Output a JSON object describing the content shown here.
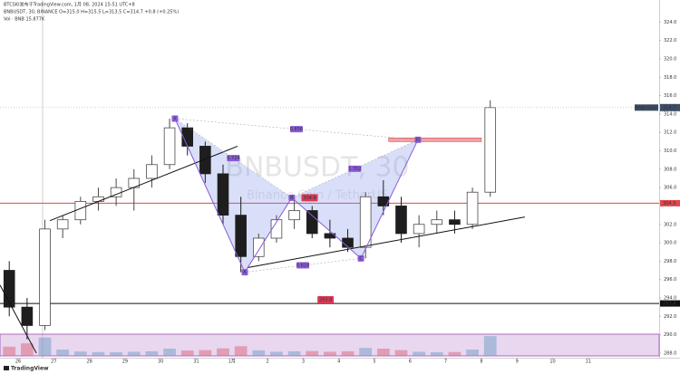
{
  "chart_data": {
    "type": "candlestick",
    "header": "BTCSKI发布于TradingView.com, 1月 08, 2024 15:51 UTC+8",
    "symbol_line": "BNBUSDT, 30, BINANCE  O=315.0 H=315.5 L=313.5 C=314.7 +0.8 (+0.25%)",
    "volume_line": "Vol · BNB  15.877K",
    "watermark": "BNBUSDT, 30",
    "watermark_sub": "Binance Coin / TetherUS",
    "symbol": "BNBUSDT",
    "brand": "TradingView",
    "x": [
      -0.25,
      0.25,
      0.75,
      1.25,
      1.75,
      2.25,
      2.75,
      3.25,
      3.75,
      4.25,
      4.75,
      5.25,
      5.75,
      6.25,
      6.75,
      7.25,
      7.75,
      8.25,
      8.75,
      9.25,
      9.75,
      10.25,
      10.75,
      11.25,
      11.75,
      12.25,
      12.75,
      13.25
    ],
    "open": [
      297,
      293,
      291,
      301.5,
      302.5,
      304.5,
      305,
      306,
      307,
      308.5,
      312.5,
      310.5,
      307.5,
      303,
      298.5,
      300.5,
      302.5,
      303.5,
      301,
      300.5,
      299.5,
      305,
      304,
      301,
      302,
      302.5,
      302,
      305.5
    ],
    "high": [
      298,
      294,
      302.5,
      303,
      305,
      306,
      307,
      308,
      309.5,
      313.5,
      313,
      311,
      308.5,
      305,
      301,
      303,
      304.9,
      304,
      302.5,
      301.5,
      305.5,
      306.8,
      305,
      303,
      303.5,
      303.5,
      306,
      315.5
    ],
    "low": [
      292,
      289.5,
      290.5,
      300.5,
      302,
      303.5,
      304,
      303.5,
      306,
      308,
      309.5,
      306.5,
      302,
      296.8,
      298,
      300,
      301.5,
      300.5,
      299.5,
      299,
      298.3,
      303,
      300,
      299.5,
      301,
      301,
      301.5,
      305
    ],
    "close": [
      293,
      291,
      301.5,
      302.5,
      304.5,
      305,
      306,
      307,
      308.5,
      312.5,
      310.5,
      307.5,
      303,
      298.5,
      300.5,
      302.5,
      303.5,
      301,
      300.5,
      299.5,
      305,
      304,
      301,
      302,
      302.5,
      302,
      305.5,
      314.7
    ],
    "volume": [
      380,
      520,
      760,
      260,
      180,
      160,
      150,
      170,
      190,
      300,
      220,
      240,
      310,
      400,
      230,
      170,
      190,
      200,
      170,
      190,
      330,
      300,
      240,
      170,
      150,
      160,
      260,
      820
    ],
    "vol_ylim": [
      0,
      900
    ],
    "up_color": "#4a4a4a",
    "down_color": "#1e1e1e",
    "xlim": [
      -0.51,
      17.99
    ],
    "xticks": [
      {
        "value": 0,
        "label": "26"
      },
      {
        "value": 1,
        "label": "27"
      },
      {
        "value": 2,
        "label": "28"
      },
      {
        "value": 3,
        "label": "29"
      },
      {
        "value": 4,
        "label": "30"
      },
      {
        "value": 5,
        "label": "31"
      },
      {
        "value": 6,
        "label": "1月"
      },
      {
        "value": 7,
        "label": "2"
      },
      {
        "value": 8,
        "label": "3"
      },
      {
        "value": 9,
        "label": "4"
      },
      {
        "value": 10,
        "label": "5"
      },
      {
        "value": 11,
        "label": "6"
      },
      {
        "value": 12,
        "label": "7"
      },
      {
        "value": 13,
        "label": "8"
      },
      {
        "value": 14,
        "label": "9"
      },
      {
        "value": 15,
        "label": "10"
      },
      {
        "value": 16,
        "label": "11"
      }
    ],
    "ylim": [
      287.5,
      326.4
    ],
    "yticks": [
      {
        "value": 288,
        "label": "288.0"
      },
      {
        "value": 290,
        "label": "290.0"
      },
      {
        "value": 292,
        "label": "292.0"
      },
      {
        "value": 294,
        "label": "294.0"
      },
      {
        "value": 296,
        "label": "296.0"
      },
      {
        "value": 298,
        "label": "298.0"
      },
      {
        "value": 300,
        "label": "300.0"
      },
      {
        "value": 302,
        "label": "302.0"
      },
      {
        "value": 306,
        "label": "306.0"
      },
      {
        "value": 308,
        "label": "308.0"
      },
      {
        "value": 310,
        "label": "310.0"
      },
      {
        "value": 312,
        "label": "312.0"
      },
      {
        "value": 314,
        "label": "314.0"
      },
      {
        "value": 316,
        "label": "316.0"
      },
      {
        "value": 318,
        "label": "318.0"
      },
      {
        "value": 320,
        "label": "320.0"
      },
      {
        "value": 322,
        "label": "322.0"
      },
      {
        "value": 324,
        "label": "324.0"
      }
    ],
    "last_price": {
      "value": 314.7,
      "label": "314.7"
    },
    "hlines": [
      {
        "price": 304.3,
        "label": "304.3",
        "color": "#e0474c"
      },
      {
        "price": 293.4,
        "label": "293.4",
        "color": "#111111"
      }
    ],
    "pattern": {
      "color": "#8a5cd8",
      "fill": "rgba(120,140,230,0.28)",
      "points": [
        {
          "label": "X",
          "day": 4.4,
          "price": 313.5
        },
        {
          "label": "A",
          "day": 6.36,
          "price": 296.8
        },
        {
          "label": "B",
          "day": 7.68,
          "price": 304.9
        },
        {
          "label": "C",
          "day": 9.62,
          "price": 298.3
        },
        {
          "label": "D",
          "day": 11.22,
          "price": 311.2
        }
      ],
      "ratios": [
        {
          "value": 0.724,
          "legs": [
            0,
            2
          ]
        },
        {
          "value": 0.856,
          "legs": [
            0,
            4
          ]
        },
        {
          "value": 1.702,
          "legs": [
            2,
            4
          ]
        },
        {
          "value": 0.824,
          "legs": [
            1,
            3
          ]
        }
      ]
    },
    "trendlines": [
      {
        "from": [
          0.89,
          302.4
        ],
        "to": [
          6.16,
          310.5
        ]
      },
      {
        "from": [
          6.44,
          297.3
        ],
        "to": [
          14.22,
          302.8
        ]
      },
      {
        "from": [
          -0.51,
          295.4
        ],
        "to": [
          0.51,
          288
        ]
      }
    ],
    "zone": {
      "day_from": 10.4,
      "day_to": 13.0,
      "price_top": 311.4,
      "price_bottom": 311.0,
      "color": "#e0474c"
    },
    "price_tags": [
      {
        "day": 7.95,
        "price": 304.9,
        "value": 304.9
      },
      {
        "day": 8.4,
        "price": 293.8,
        "value": 293.8
      }
    ]
  }
}
